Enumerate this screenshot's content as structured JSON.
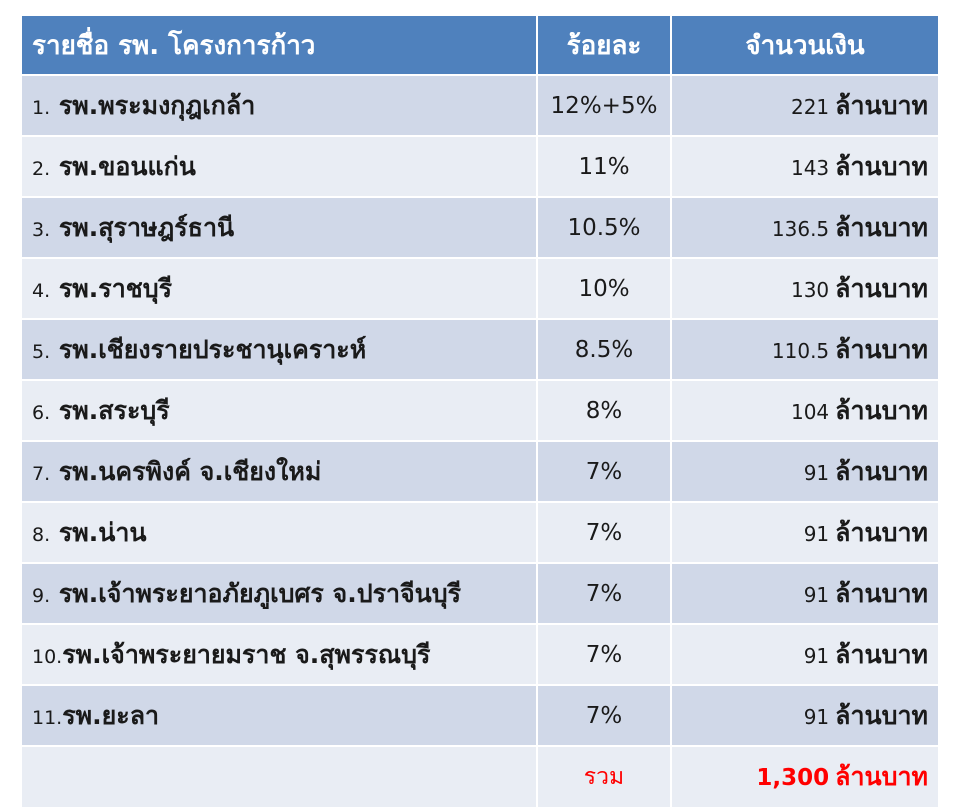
{
  "header": {
    "name": "รายชื่อ รพ. โครงการก้าว",
    "percent": "ร้อยละ",
    "amount": "จำนวนเงิน"
  },
  "rows": [
    {
      "index": "1.",
      "name": "รพ.พระมงกุฎเกล้า",
      "percent": "12%+5%",
      "amount": "221",
      "unit": "ล้านบาท"
    },
    {
      "index": "2.",
      "name": "รพ.ขอนแก่น",
      "percent": "11%",
      "amount": "143",
      "unit": "ล้านบาท"
    },
    {
      "index": "3.",
      "name": "รพ.สุราษฎร์ธานี",
      "percent": "10.5%",
      "amount": "136.5",
      "unit": "ล้านบาท"
    },
    {
      "index": "4.",
      "name": "รพ.ราชบุรี",
      "percent": "10%",
      "amount": "130",
      "unit": "ล้านบาท"
    },
    {
      "index": "5.",
      "name": "รพ.เชียงรายประชานุเคราะห์",
      "percent": "8.5%",
      "amount": "110.5",
      "unit": "ล้านบาท"
    },
    {
      "index": "6.",
      "name": "รพ.สระบุรี",
      "percent": "8%",
      "amount": "104",
      "unit": "ล้านบาท"
    },
    {
      "index": "7.",
      "name": "รพ.นครพิงค์ จ.เชียงใหม่",
      "percent": "7%",
      "amount": "91",
      "unit": "ล้านบาท"
    },
    {
      "index": "8.",
      "name": "รพ.น่าน",
      "percent": "7%",
      "amount": "91",
      "unit": "ล้านบาท"
    },
    {
      "index": "9.",
      "name": "รพ.เจ้าพระยาอภัยภูเบศร จ.ปราจีนบุรี",
      "percent": "7%",
      "amount": "91",
      "unit": "ล้านบาท"
    },
    {
      "index": "10.",
      "name": "รพ.เจ้าพระยายมราช จ.สุพรรณบุรี",
      "percent": "7%",
      "amount": "91",
      "unit": "ล้านบาท"
    },
    {
      "index": "11.",
      "name": "รพ.ยะลา",
      "percent": "7%",
      "amount": "91",
      "unit": "ล้านบาท"
    }
  ],
  "total": {
    "label": "รวม",
    "amount": "1,300",
    "unit": "ล้านบาท"
  },
  "colors": {
    "header_bg": "#4f81bd",
    "row_odd_bg": "#d0d8e8",
    "row_even_bg": "#e9edf4",
    "total_text": "#ff0000"
  }
}
